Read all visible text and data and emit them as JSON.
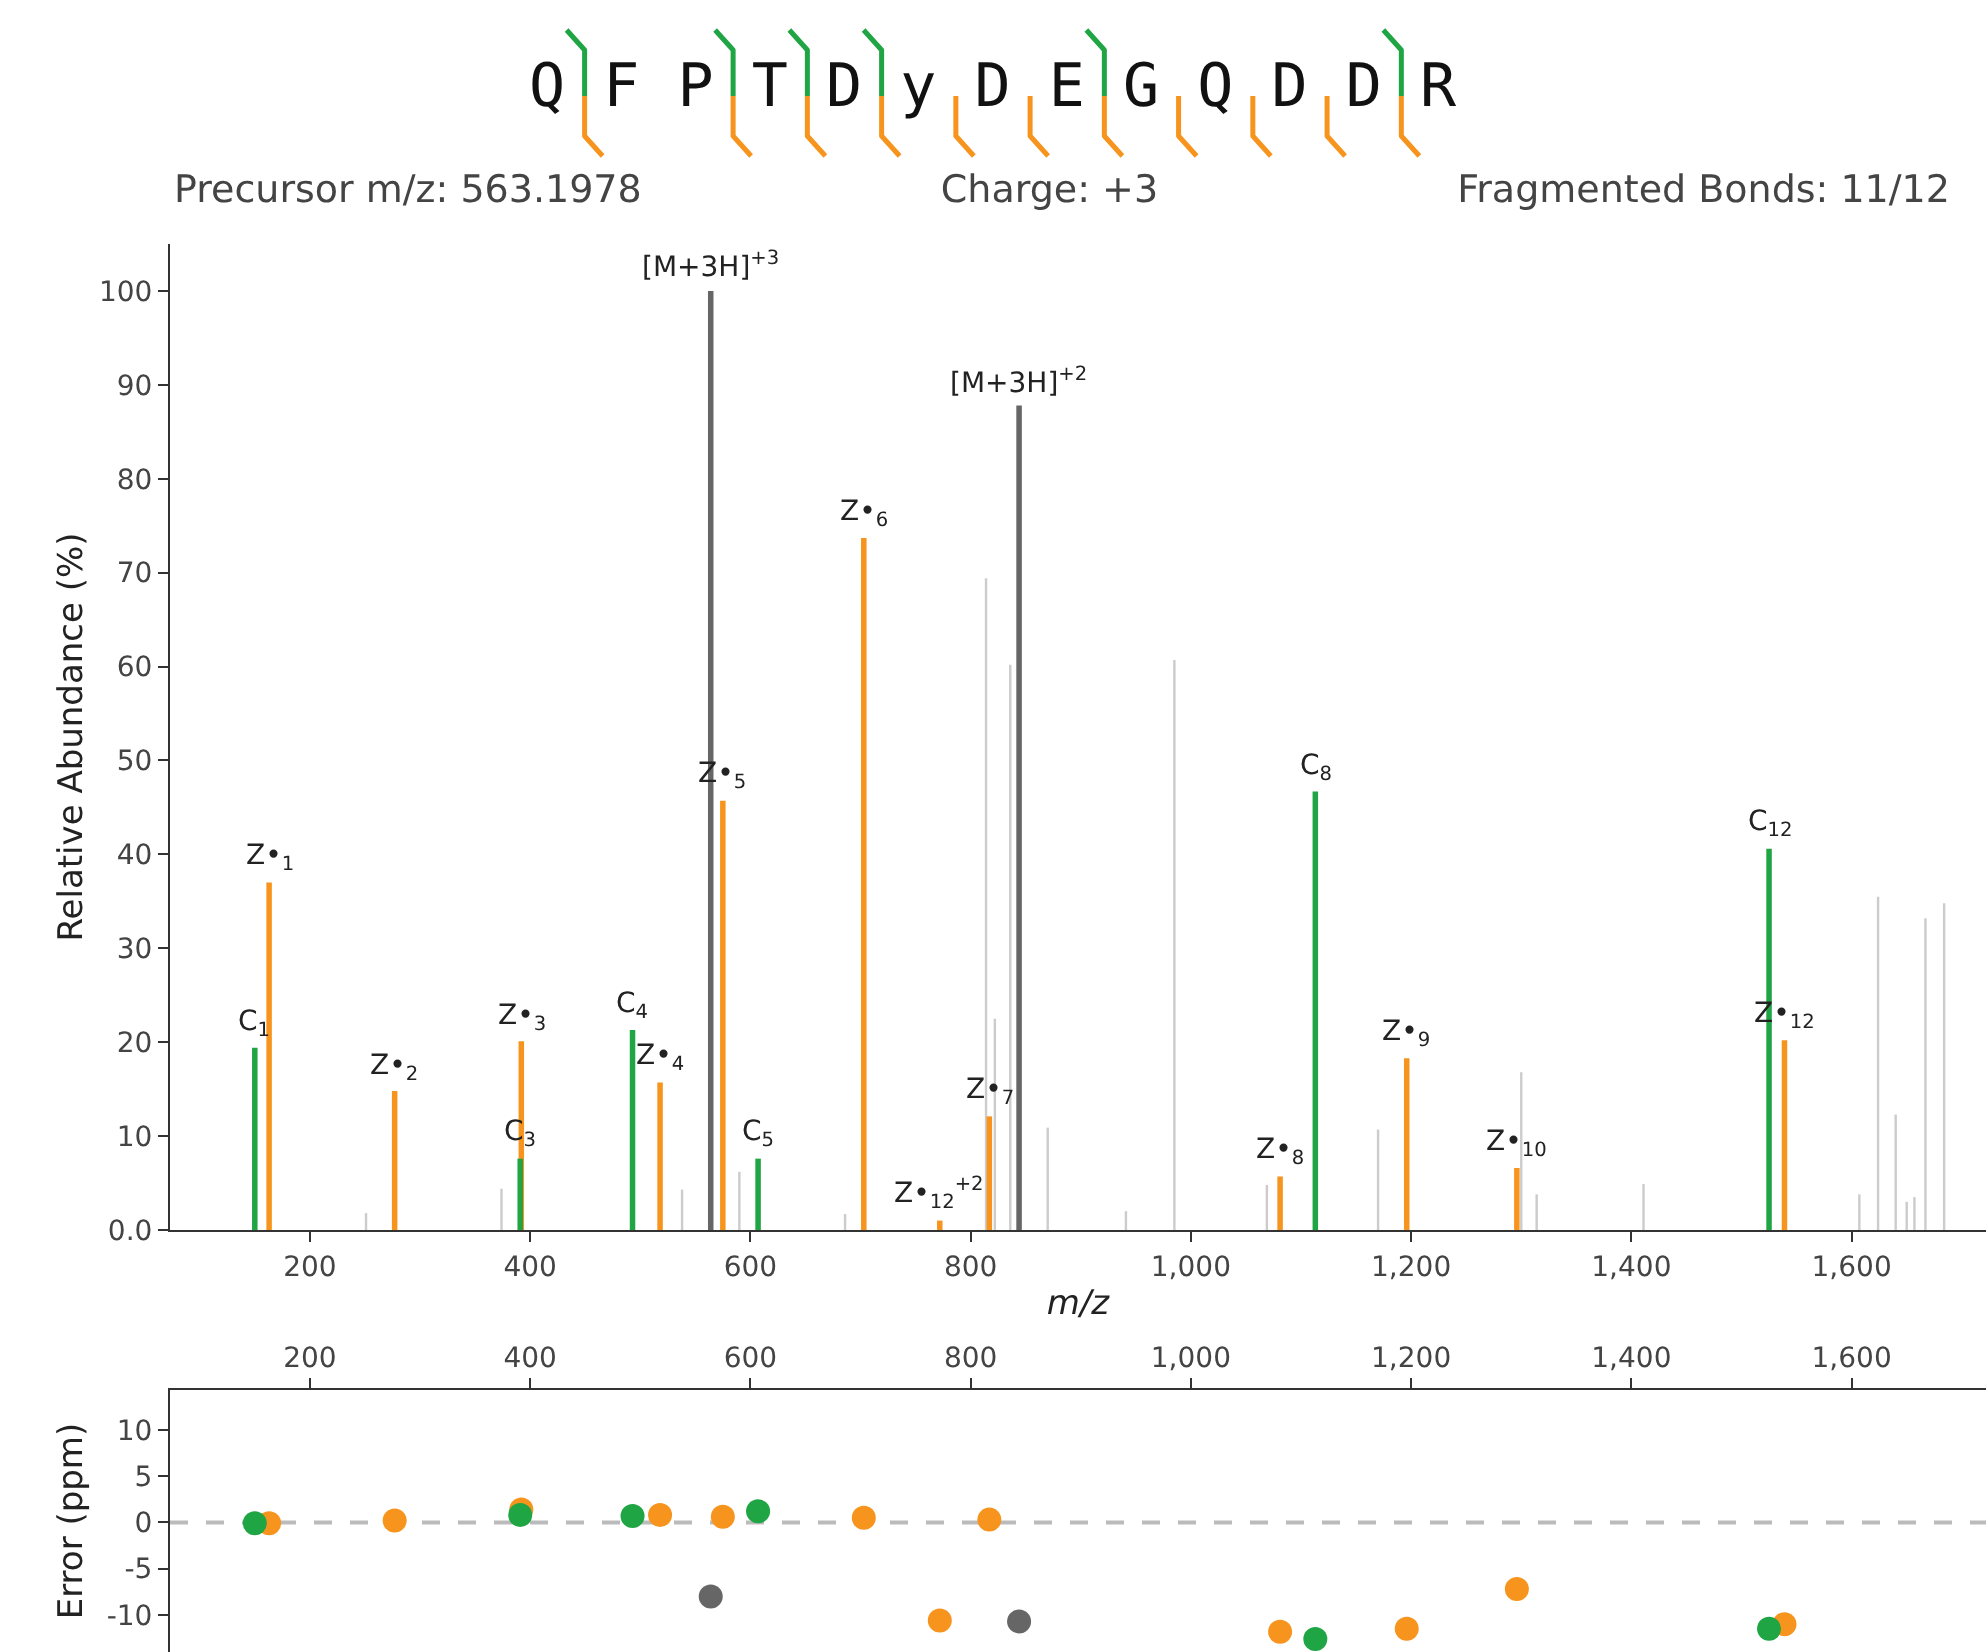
{
  "chart_data": [
    {
      "type": "bar",
      "title": "Q F P T D y D E G Q D D R",
      "xlabel": "m/z",
      "ylabel": "Relative Abundance (%)",
      "xlim": [
        73,
        1722
      ],
      "xticks": [
        200,
        400,
        600,
        800,
        {
          "value": 1000,
          "label": "1,000"
        },
        {
          "value": 1200,
          "label": "1,200"
        },
        {
          "value": 1400,
          "label": "1,400"
        },
        {
          "value": 1600,
          "label": "1,600"
        }
      ],
      "ylim": [
        0,
        105
      ],
      "yticks": [
        {
          "value": 0,
          "label": "0.0"
        },
        10,
        20,
        30,
        40,
        50,
        60,
        70,
        80,
        90,
        100
      ],
      "grid": false,
      "series": [
        {
          "color": "#cccccc",
          "x": [
            251,
            374,
            538,
            590,
            686,
            814,
            822,
            836,
            870,
            941,
            985,
            1069,
            1170,
            1300,
            1314,
            1411,
            1607,
            1624,
            1640,
            1650,
            1657,
            1667,
            1684
          ],
          "values": [
            1.8,
            4.4,
            4.3,
            6.2,
            1.7,
            69.4,
            22.5,
            60.2,
            10.9,
            2,
            60.7,
            4.8,
            10.7,
            16.8,
            3.8,
            4.9,
            3.8,
            35.5,
            12.3,
            3,
            3.5,
            33.2,
            34.8
          ]
        },
        {
          "color": "#666666",
          "x": [
            564,
            844
          ],
          "values": [
            100,
            87.8
          ]
        },
        {
          "color": "#f7941d",
          "x": [
            163,
            277,
            392,
            518,
            575,
            703,
            772,
            817,
            1081,
            1196,
            1296,
            1539
          ],
          "values": [
            37.0,
            14.8,
            20.1,
            15.7,
            45.7,
            73.7,
            1,
            12.1,
            5.7,
            18.3,
            6.6,
            20.2
          ]
        },
        {
          "color": "#1fa544",
          "x": [
            150,
            391,
            493,
            607,
            1113,
            1525
          ],
          "values": [
            19.4,
            7.6,
            21.3,
            7.6,
            46.7,
            40.6
          ]
        }
      ],
      "annotations": [
        "Precursor m/z:  563.1978",
        "Charge: +3",
        "Fragmented Bonds: 11/12",
        {
          "text": "C$_{1}$",
          "x": 150,
          "y": 19.4
        },
        {
          "text": "Z•$_{1}$",
          "x": 163,
          "y": 37.0
        },
        {
          "text": "Z•$_{2}$",
          "x": 277,
          "y": 14.8
        },
        {
          "text": "Z•$_{3}$",
          "x": 392,
          "y": 20.1
        },
        {
          "text": "C$_{3}$",
          "x": 391,
          "y": 7.6
        },
        {
          "text": "C$_{4}$",
          "x": 493,
          "y": 21.3
        },
        {
          "text": "Z•$_{4}$",
          "x": 518,
          "y": 15.7
        },
        {
          "text": "[M+3H]$^{+3}$",
          "x": 564,
          "y": 100
        },
        {
          "text": "Z•$_{5}$",
          "x": 575,
          "y": 45.7
        },
        {
          "text": "C$_{5}$",
          "x": 607,
          "y": 7.6
        },
        {
          "text": "Z•$_{6}$",
          "x": 703,
          "y": 73.7
        },
        {
          "text": "Z•$_{12}$$^{+2}$",
          "x": 772,
          "y": 1
        },
        {
          "text": "Z•$_{7}$",
          "x": 817,
          "y": 12.1
        },
        {
          "text": "[M+3H]$^{+2}$",
          "x": 844,
          "y": 87.8
        },
        {
          "text": "Z•$_{8}$",
          "x": 1081,
          "y": 5.7
        },
        {
          "text": "C$_{8}$",
          "x": 1113,
          "y": 46.7
        },
        {
          "text": "Z•$_{9}$",
          "x": 1196,
          "y": 18.3
        },
        {
          "text": "Z•$_{10}$",
          "x": 1296,
          "y": 6.6
        },
        {
          "text": "C$_{12}$",
          "x": 1525,
          "y": 40.6
        },
        {
          "text": "Z•$_{12}$",
          "x": 1539,
          "y": 20.2
        }
      ]
    },
    {
      "type": "scatter",
      "ylabel": "Error (ppm)",
      "marker": "circle",
      "grid": false,
      "xlim": [
        73,
        1722
      ],
      "xticks": [
        200,
        400,
        600,
        800,
        {
          "value": 1000,
          "label": "1,000"
        },
        {
          "value": 1200,
          "label": "1,200"
        },
        {
          "value": 1400,
          "label": "1,400"
        },
        {
          "value": 1600,
          "label": "1,600"
        }
      ],
      "ylim": [
        -14,
        14.3
      ],
      "yticks": [
        -10,
        -5,
        0,
        5,
        10
      ],
      "ref_lines": [
        {
          "axis": "y",
          "value": 0,
          "color": "#bbbbbb",
          "line_style": "dashed"
        }
      ],
      "series": [
        {
          "color": "#666666",
          "x": [
            564,
            844
          ],
          "values": [
            -8,
            -10.7
          ]
        },
        {
          "color": "#f7941d",
          "x": [
            163,
            277,
            392,
            518,
            575,
            703,
            772,
            817,
            1081,
            1196,
            1296,
            1539
          ],
          "values": [
            -0.1,
            0.2,
            1.4,
            0.8,
            0.6,
            0.5,
            -10.6,
            0.3,
            -11.8,
            -11.5,
            -7.2,
            -11.0
          ]
        },
        {
          "color": "#1fa544",
          "x": [
            150,
            391,
            493,
            607,
            1113,
            1525
          ],
          "values": [
            -0.1,
            0.8,
            0.7,
            1.2,
            -12.6,
            -11.5
          ]
        }
      ]
    }
  ]
}
